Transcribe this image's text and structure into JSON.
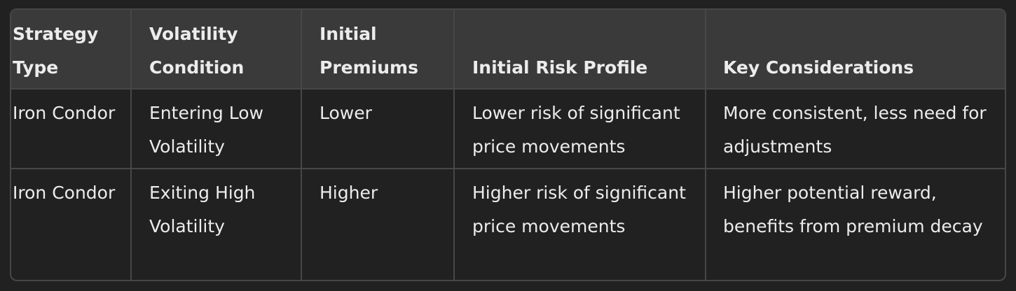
{
  "table": {
    "headers": [
      "Strategy Type",
      "Volatility Condition",
      "Initial Premiums",
      "Initial Risk Profile",
      "Key Considerations"
    ],
    "rows": [
      [
        "Iron Condor",
        "Entering Low Volatility",
        "Lower",
        "Lower risk of significant price movements",
        "More consistent, less need for adjustments"
      ],
      [
        "Iron Condor",
        "Exiting High Volatility",
        "Higher",
        "Higher risk of significant price movements",
        "Higher potential reward, benefits from premium decay"
      ]
    ]
  },
  "colors": {
    "background": "#212121",
    "header_background": "#3a3a3a",
    "border": "#474747",
    "text": "#ececec"
  }
}
